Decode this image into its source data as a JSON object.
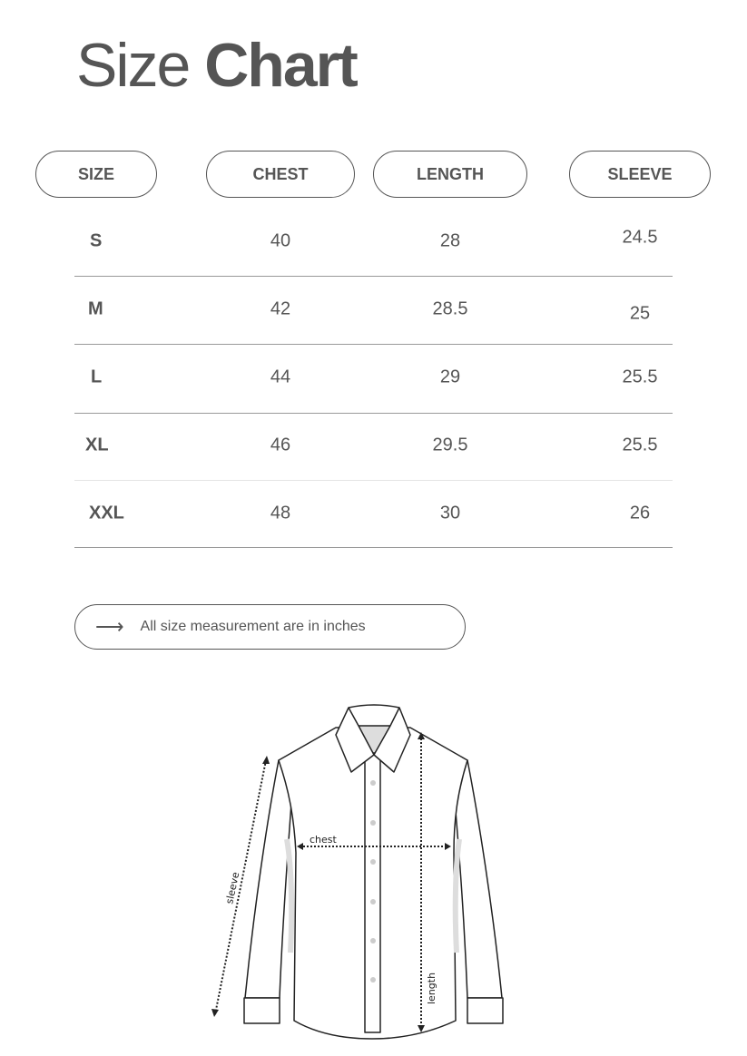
{
  "title": {
    "light": "Size",
    "bold": "Chart"
  },
  "headers": [
    "SIZE",
    "CHEST",
    "LENGTH",
    "SLEEVE"
  ],
  "rows": [
    {
      "size": "S",
      "chest": "40",
      "length": "28",
      "sleeve": "24.5"
    },
    {
      "size": "M",
      "chest": "42",
      "length": "28.5",
      "sleeve": "25"
    },
    {
      "size": "L",
      "chest": "44",
      "length": "29",
      "sleeve": "25.5"
    },
    {
      "size": "XL",
      "chest": "46",
      "length": "29.5",
      "sleeve": "25.5"
    },
    {
      "size": "XXL",
      "chest": "48",
      "length": "30",
      "sleeve": "26"
    }
  ],
  "note": {
    "icon": "arrow-right-icon",
    "text": "All size measurement are in inches"
  },
  "diagram": {
    "chest_label": "chest",
    "sleeve_label": "sleeve",
    "length_label": "length"
  }
}
